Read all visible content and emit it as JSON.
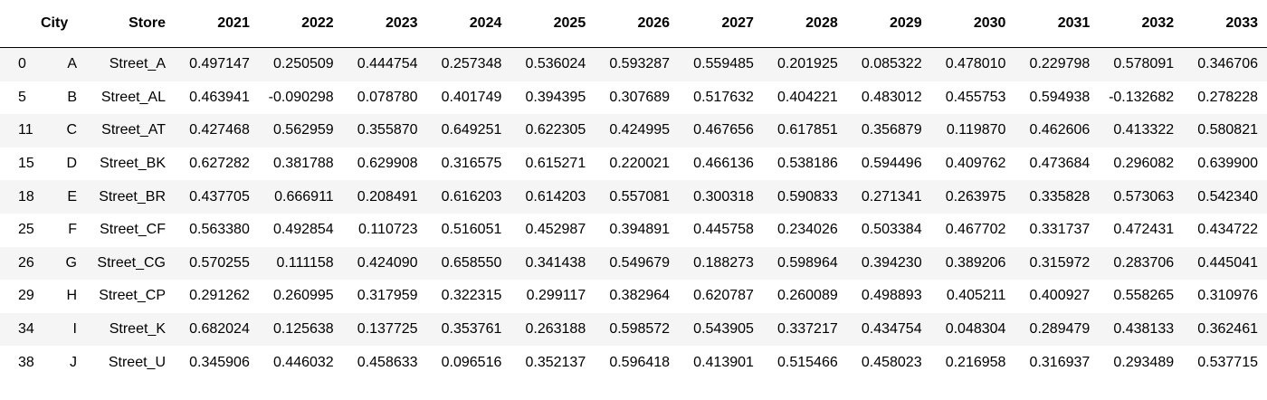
{
  "table": {
    "headers": [
      "",
      "City",
      "Store",
      "2021",
      "2022",
      "2023",
      "2024",
      "2025",
      "2026",
      "2027",
      "2028",
      "2029",
      "2030",
      "2031",
      "2032",
      "2033"
    ],
    "rows": [
      {
        "index": "0",
        "cells": [
          "A",
          "Street_A",
          "0.497147",
          "0.250509",
          "0.444754",
          "0.257348",
          "0.536024",
          "0.593287",
          "0.559485",
          "0.201925",
          "0.085322",
          "0.478010",
          "0.229798",
          "0.578091",
          "0.346706"
        ]
      },
      {
        "index": "5",
        "cells": [
          "B",
          "Street_AL",
          "0.463941",
          "-0.090298",
          "0.078780",
          "0.401749",
          "0.394395",
          "0.307689",
          "0.517632",
          "0.404221",
          "0.483012",
          "0.455753",
          "0.594938",
          "-0.132682",
          "0.278228"
        ]
      },
      {
        "index": "11",
        "cells": [
          "C",
          "Street_AT",
          "0.427468",
          "0.562959",
          "0.355870",
          "0.649251",
          "0.622305",
          "0.424995",
          "0.467656",
          "0.617851",
          "0.356879",
          "0.119870",
          "0.462606",
          "0.413322",
          "0.580821"
        ]
      },
      {
        "index": "15",
        "cells": [
          "D",
          "Street_BK",
          "0.627282",
          "0.381788",
          "0.629908",
          "0.316575",
          "0.615271",
          "0.220021",
          "0.466136",
          "0.538186",
          "0.594496",
          "0.409762",
          "0.473684",
          "0.296082",
          "0.639900"
        ]
      },
      {
        "index": "18",
        "cells": [
          "E",
          "Street_BR",
          "0.437705",
          "0.666911",
          "0.208491",
          "0.616203",
          "0.614203",
          "0.557081",
          "0.300318",
          "0.590833",
          "0.271341",
          "0.263975",
          "0.335828",
          "0.573063",
          "0.542340"
        ]
      },
      {
        "index": "25",
        "cells": [
          "F",
          "Street_CF",
          "0.563380",
          "0.492854",
          "0.110723",
          "0.516051",
          "0.452987",
          "0.394891",
          "0.445758",
          "0.234026",
          "0.503384",
          "0.467702",
          "0.331737",
          "0.472431",
          "0.434722"
        ]
      },
      {
        "index": "26",
        "cells": [
          "G",
          "Street_CG",
          "0.570255",
          "0.111158",
          "0.424090",
          "0.658550",
          "0.341438",
          "0.549679",
          "0.188273",
          "0.598964",
          "0.394230",
          "0.389206",
          "0.315972",
          "0.283706",
          "0.445041"
        ]
      },
      {
        "index": "29",
        "cells": [
          "H",
          "Street_CP",
          "0.291262",
          "0.260995",
          "0.317959",
          "0.322315",
          "0.299117",
          "0.382964",
          "0.620787",
          "0.260089",
          "0.498893",
          "0.405211",
          "0.400927",
          "0.558265",
          "0.310976"
        ]
      },
      {
        "index": "34",
        "cells": [
          "I",
          "Street_K",
          "0.682024",
          "0.125638",
          "0.137725",
          "0.353761",
          "0.263188",
          "0.598572",
          "0.543905",
          "0.337217",
          "0.434754",
          "0.048304",
          "0.289479",
          "0.438133",
          "0.362461"
        ]
      },
      {
        "index": "38",
        "cells": [
          "J",
          "Street_U",
          "0.345906",
          "0.446032",
          "0.458633",
          "0.096516",
          "0.352137",
          "0.596418",
          "0.413901",
          "0.515466",
          "0.458023",
          "0.216958",
          "0.316937",
          "0.293489",
          "0.537715"
        ]
      }
    ]
  }
}
